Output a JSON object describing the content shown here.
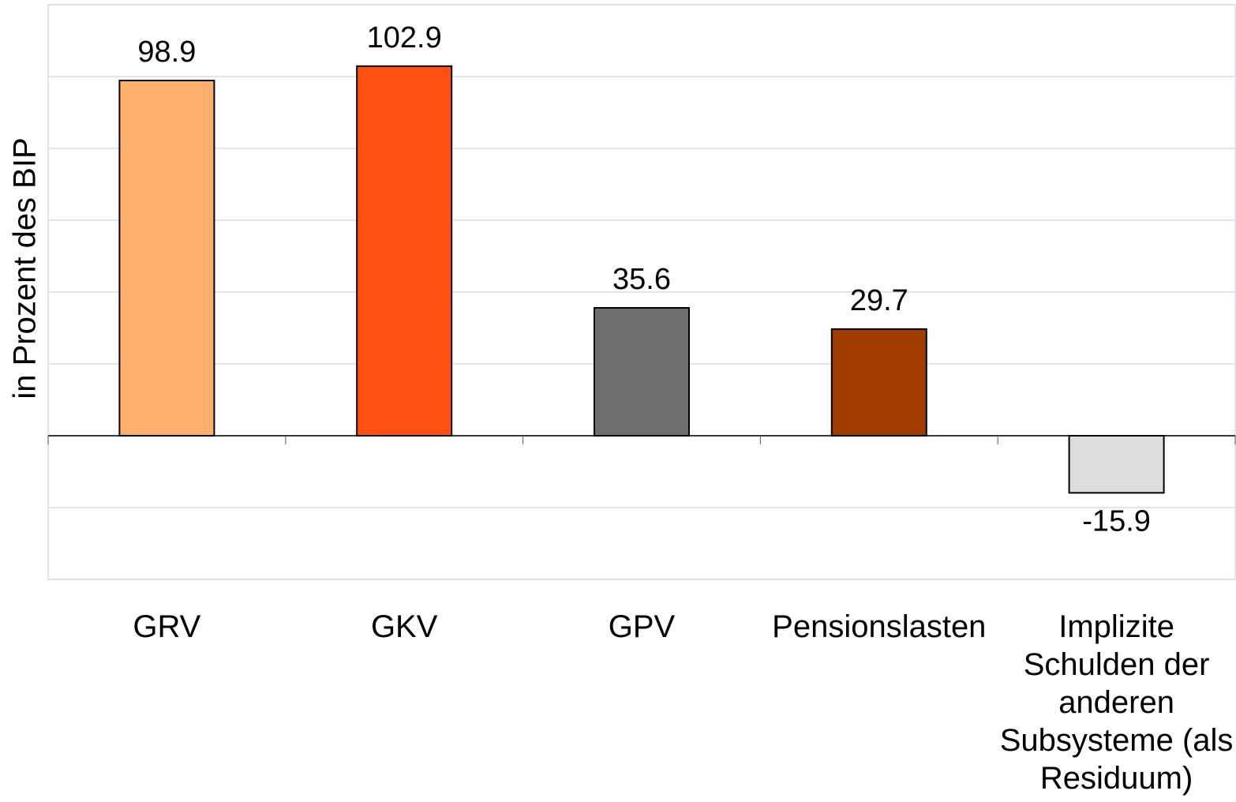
{
  "chart_data": {
    "type": "bar",
    "y_label": "in Prozent des BIP",
    "categories": [
      "GRV",
      "GKV",
      "GPV",
      "Pensionslasten",
      "Implizite Schulden der anderen Subsysteme (als Residuum)"
    ],
    "values": [
      98.9,
      102.9,
      35.6,
      29.7,
      -15.9
    ],
    "colors": [
      "#ffaf6e",
      "#ff5214",
      "#6e6e6e",
      "#a03c00",
      "#dcdcdc"
    ],
    "ylim": [
      -40,
      120
    ],
    "yticks": [
      -40,
      -20,
      0,
      20,
      40,
      60,
      80,
      100,
      120
    ],
    "grid": true,
    "ytick_labels": false
  }
}
